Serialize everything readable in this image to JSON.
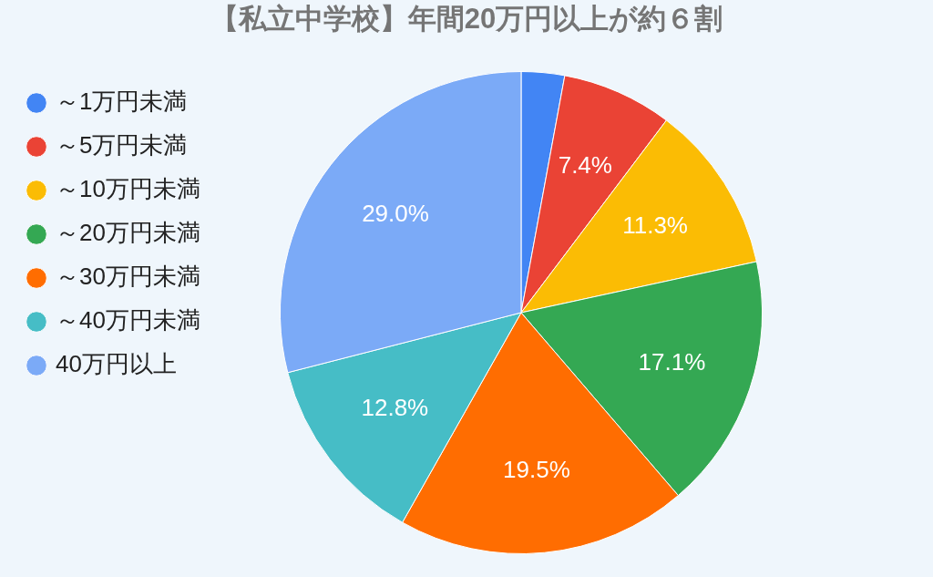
{
  "chart_data": {
    "type": "pie",
    "title": "【私立中学校】年間20万円以上が約６割",
    "categories": [
      "～1万円未満",
      "～5万円未満",
      "～10万円未満",
      "～20万円未満",
      "～30万円未満",
      "～40万円未満",
      "40万円以上"
    ],
    "values": [
      2.9,
      7.4,
      11.3,
      17.1,
      19.5,
      12.8,
      29.0
    ],
    "colors": [
      "#4285f4",
      "#ea4335",
      "#fbbc04",
      "#34a853",
      "#ff6d01",
      "#46bdc6",
      "#7baaf7"
    ],
    "value_labels": [
      null,
      "7.4%",
      "11.3%",
      "17.1%",
      "19.5%",
      "12.8%",
      "29.0%"
    ],
    "legend": "left"
  }
}
